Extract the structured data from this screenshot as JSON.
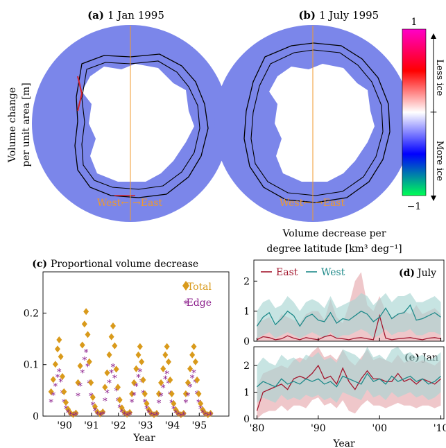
{
  "colors": {
    "sea": "#7b86ea",
    "ice": "#ffffff",
    "west": "#f09a2c",
    "east_line": "#a3172e",
    "west_line": "#1f8a8a",
    "east_band": "#e6a9ae",
    "west_band": "#a9d6d2",
    "total": "#d99a1b",
    "edge": "#8b1d8b"
  },
  "panel_a": {
    "letter": "(a)",
    "title": "1 Jan  1995"
  },
  "panel_b": {
    "letter": "(b)",
    "title": "1 July  1995"
  },
  "map_ylabel_1": "Volume change",
  "map_ylabel_2": "per unit area [m]",
  "compass": {
    "west": "West←",
    "east": "→East"
  },
  "colorbar": {
    "top": "1",
    "bottom": "−1",
    "mid": "+",
    "less": "Less  ice",
    "more": "More  ice"
  },
  "chart_data": [
    {
      "type": "scatter",
      "letter": "(c)",
      "title": "Proportional volume decrease",
      "xlabel": "Year",
      "ylabel": "",
      "xlim": [
        1989.2,
        1996.1
      ],
      "ylim": [
        0,
        0.28
      ],
      "yticks": [
        0,
        0.1,
        0.2
      ],
      "ytick_labels": [
        "0",
        "0.1",
        "0.2"
      ],
      "xticks": [
        1990,
        1991,
        1992,
        1993,
        1994,
        1995
      ],
      "xtick_labels": [
        "'90",
        "'91",
        "'92",
        "'93",
        "'94",
        "'95"
      ],
      "legend": {
        "position": "top-right",
        "total": "Total",
        "edge": "Edge"
      },
      "series": [
        {
          "name": "Total",
          "marker": "diamond",
          "peaks": [
            0.148,
            0.203,
            0.175,
            0.135,
            0.135,
            0.135
          ]
        },
        {
          "name": "Edge",
          "marker": "asterisk",
          "peaks": [
            0.092,
            0.132,
            0.102,
            0.092,
            0.088,
            0.09
          ]
        }
      ]
    },
    {
      "type": "line",
      "letter": "(d)",
      "title_1": "Volume decrease per",
      "title_2": "degree latitude [km³ deg⁻¹]",
      "panel_label": "July",
      "xlim": [
        1979.5,
        2010.5
      ],
      "ylim": [
        0,
        2.7
      ],
      "yticks": [
        0,
        1,
        2
      ],
      "ytick_labels": [
        "0",
        "1",
        "2"
      ],
      "legend": {
        "east": "East",
        "west": "West"
      },
      "x": [
        1980,
        1981,
        1982,
        1983,
        1984,
        1985,
        1986,
        1987,
        1988,
        1989,
        1990,
        1991,
        1992,
        1993,
        1994,
        1995,
        1996,
        1997,
        1998,
        1999,
        2000,
        2001,
        2002,
        2003,
        2004,
        2005,
        2006,
        2007,
        2008,
        2009,
        2010
      ],
      "series": [
        {
          "name": "East",
          "values": [
            0.05,
            0.15,
            0.12,
            0.05,
            0.08,
            0.18,
            0.1,
            0.05,
            0.12,
            0.08,
            0.05,
            0.15,
            0.2,
            0.1,
            0.08,
            0.05,
            0.1,
            0.12,
            0.08,
            0.05,
            0.85,
            0.1,
            0.05,
            0.08,
            0.1,
            0.12,
            0.08,
            0.05,
            0.1,
            0.12,
            0.08
          ],
          "low": [
            0,
            0,
            0,
            0,
            0,
            0,
            0,
            0,
            0,
            0,
            0,
            0,
            0,
            0,
            0,
            0,
            0,
            0,
            0,
            0,
            0,
            0,
            0,
            0,
            0,
            0,
            0,
            0,
            0,
            0,
            0
          ],
          "high": [
            0.6,
            0.7,
            0.8,
            0.5,
            0.9,
            0.8,
            0.7,
            0.6,
            0.9,
            1.0,
            1.0,
            0.7,
            1.4,
            0.8,
            0.6,
            1.2,
            2.0,
            2.3,
            1.2,
            1.0,
            1.5,
            1.0,
            0.8,
            0.9,
            1.0,
            0.9,
            1.2,
            0.9,
            1.0,
            1.1,
            0.9
          ]
        },
        {
          "name": "West",
          "values": [
            0.5,
            0.8,
            0.95,
            0.55,
            0.75,
            1.0,
            0.85,
            0.5,
            0.8,
            0.9,
            0.7,
            0.65,
            0.95,
            0.6,
            0.75,
            0.7,
            0.85,
            1.0,
            0.9,
            0.65,
            0.8,
            1.1,
            0.75,
            0.9,
            0.95,
            1.2,
            0.7,
            0.75,
            0.85,
            0.95,
            0.8
          ],
          "low": [
            0.1,
            0.2,
            0.3,
            0.1,
            0.2,
            0.3,
            0.2,
            0.1,
            0.2,
            0.3,
            0.2,
            0.1,
            0.3,
            0.1,
            0.2,
            0.2,
            0.3,
            0.4,
            0.3,
            0.1,
            0.2,
            0.4,
            0.2,
            0.3,
            0.3,
            0.4,
            0.2,
            0.2,
            0.3,
            0.3,
            0.2
          ],
          "high": [
            1.0,
            1.3,
            1.4,
            1.1,
            1.2,
            1.5,
            1.3,
            1.0,
            1.3,
            1.4,
            1.3,
            1.1,
            1.5,
            1.1,
            1.2,
            1.3,
            1.4,
            1.6,
            1.5,
            1.2,
            1.4,
            1.6,
            1.3,
            1.5,
            1.5,
            1.6,
            1.3,
            1.3,
            1.4,
            1.5,
            1.3
          ]
        }
      ]
    },
    {
      "type": "line",
      "letter": "(e)",
      "panel_label": "Jan",
      "xlabel": "Year",
      "xlim": [
        1979.5,
        2010.5
      ],
      "ylim": [
        0,
        2.7
      ],
      "yticks": [
        0,
        1,
        2
      ],
      "ytick_labels": [
        "0",
        "1",
        "2"
      ],
      "xticks": [
        1980,
        1990,
        2000,
        2010
      ],
      "xtick_labels": [
        "'80",
        "'90",
        "'00",
        "'10"
      ],
      "x": [
        1980,
        1981,
        1982,
        1983,
        1984,
        1985,
        1986,
        1987,
        1988,
        1989,
        1990,
        1991,
        1992,
        1993,
        1994,
        1995,
        1996,
        1997,
        1998,
        1999,
        2000,
        2001,
        2002,
        2003,
        2004,
        2005,
        2006,
        2007,
        2008,
        2009,
        2010
      ],
      "series": [
        {
          "name": "East",
          "values": [
            0.3,
            1.0,
            1.1,
            1.2,
            1.3,
            1.1,
            1.5,
            1.6,
            1.5,
            1.7,
            2.0,
            1.5,
            1.6,
            1.3,
            1.9,
            1.4,
            1.1,
            1.5,
            1.8,
            1.5,
            1.5,
            1.4,
            1.4,
            1.7,
            1.4,
            1.5,
            1.3,
            1.5,
            1.4,
            1.3,
            1.5
          ],
          "low": [
            0,
            0.2,
            0.3,
            0.3,
            0.5,
            0.3,
            0.5,
            0.5,
            0.4,
            0.7,
            0.8,
            0.5,
            0.6,
            0.4,
            0.7,
            0.3,
            0.2,
            0.5,
            0.7,
            0.5,
            0.5,
            0.4,
            0.5,
            0.6,
            0.5,
            0.5,
            0.4,
            0.5,
            0.5,
            0.4,
            0.5
          ],
          "high": [
            1.2,
            1.7,
            1.8,
            1.9,
            2.0,
            1.9,
            2.2,
            2.3,
            2.2,
            2.5,
            2.7,
            2.3,
            2.4,
            2.2,
            2.6,
            2.2,
            2.0,
            2.3,
            2.6,
            2.2,
            2.3,
            2.2,
            2.1,
            2.4,
            2.1,
            2.2,
            2.1,
            2.2,
            2.1,
            2.0,
            2.2
          ]
        },
        {
          "name": "West",
          "values": [
            1.2,
            1.4,
            1.3,
            1.2,
            1.5,
            1.3,
            1.4,
            1.3,
            1.5,
            1.4,
            1.5,
            1.3,
            1.4,
            1.2,
            1.6,
            1.5,
            1.4,
            1.3,
            1.7,
            1.4,
            1.5,
            1.3,
            1.6,
            1.4,
            1.5,
            1.6,
            1.4,
            1.5,
            1.3,
            1.4,
            1.6
          ],
          "low": [
            0.6,
            0.8,
            0.7,
            0.6,
            0.9,
            0.7,
            0.8,
            0.7,
            0.9,
            0.8,
            0.9,
            0.7,
            0.8,
            0.6,
            1.0,
            0.9,
            0.8,
            0.7,
            1.1,
            0.8,
            0.9,
            0.7,
            1.0,
            0.8,
            0.9,
            1.0,
            0.8,
            0.9,
            0.7,
            0.8,
            1.0
          ],
          "high": [
            2.0,
            2.3,
            2.1,
            2.0,
            2.4,
            2.2,
            2.3,
            2.1,
            2.4,
            2.3,
            2.5,
            2.2,
            2.3,
            2.1,
            2.6,
            2.5,
            2.4,
            2.2,
            2.7,
            2.3,
            2.4,
            2.2,
            2.6,
            2.7,
            2.4,
            2.5,
            2.3,
            2.4,
            2.2,
            2.3,
            2.5
          ]
        }
      ]
    }
  ]
}
